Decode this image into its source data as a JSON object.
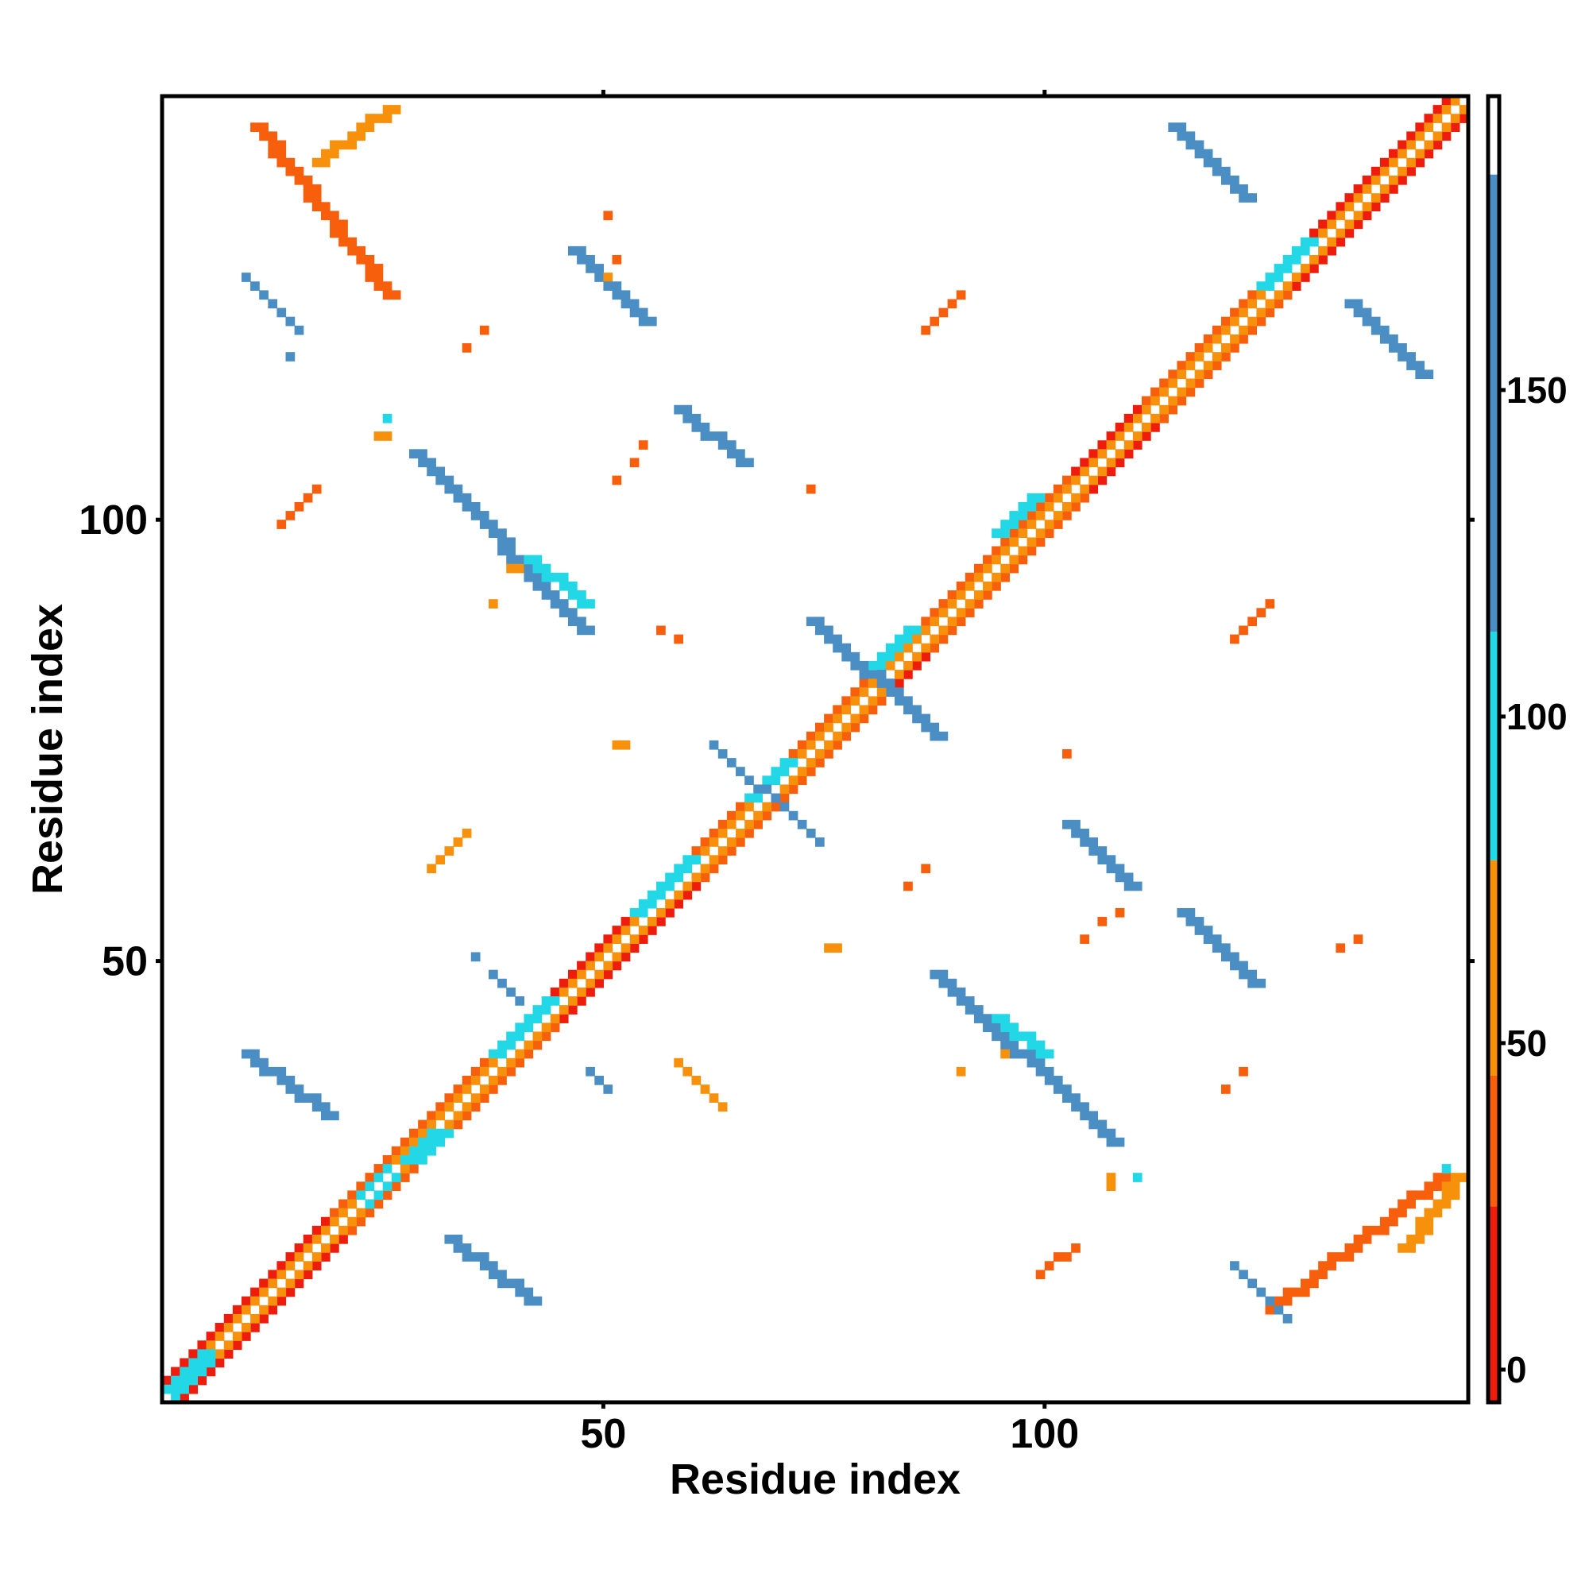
{
  "chart_data": {
    "type": "heatmap",
    "title": "",
    "xlabel": "Residue index",
    "ylabel": "Residue index",
    "xlim": [
      0,
      148
    ],
    "ylim": [
      0,
      148
    ],
    "x_ticks": [
      50,
      100
    ],
    "x_tick_labels": [
      "50",
      "100"
    ],
    "y_ticks": [
      50,
      100
    ],
    "y_tick_labels": [
      "50",
      "100"
    ],
    "grid": false,
    "legend": "right colorbar",
    "colorbar": {
      "ticks": [
        0,
        50,
        100,
        150
      ],
      "tick_labels": [
        "0",
        "50",
        "100",
        "150"
      ],
      "range": [
        -5,
        195
      ],
      "bands": [
        {
          "from": -5,
          "to": 25,
          "color": "#ee1c0c"
        },
        {
          "from": 25,
          "to": 45,
          "color": "#f75f0c"
        },
        {
          "from": 45,
          "to": 78,
          "color": "#f7910c"
        },
        {
          "from": 78,
          "to": 113,
          "color": "#22d8e6"
        },
        {
          "from": 113,
          "to": 183,
          "color": "#4a8ec4"
        },
        {
          "from": 183,
          "to": 195,
          "color": "#ffffff"
        }
      ]
    },
    "colors": {
      "red": "#ee1c0c",
      "orange_red": "#f75f0c",
      "orange": "#f7910c",
      "cyan": "#22d8e6",
      "steel_blue": "#4a8ec4",
      "frame": "#000000"
    },
    "segments": [
      {
        "x0": 1,
        "y0": 3,
        "x1": 147,
        "y1": 149,
        "w": 1,
        "color": "red",
        "sym": true
      },
      {
        "x0": 1,
        "y0": 2,
        "x1": 147,
        "y1": 148,
        "w": 1,
        "color": "orange",
        "sym": true
      },
      {
        "x0": 20,
        "y0": 22,
        "x1": 43,
        "y1": 45,
        "w": 1,
        "color": "orange_red",
        "sym": true
      },
      {
        "x0": 60,
        "y0": 62,
        "x1": 80,
        "y1": 82,
        "w": 1,
        "color": "orange_red",
        "sym": true
      },
      {
        "x0": 86,
        "y0": 88,
        "x1": 103,
        "y1": 105,
        "w": 1,
        "color": "orange_red",
        "sym": true
      },
      {
        "x0": 112,
        "y0": 114,
        "x1": 126,
        "y1": 128,
        "w": 1,
        "color": "orange_red",
        "sym": true
      },
      {
        "x0": 1,
        "y0": 2,
        "x1": 5,
        "y1": 6,
        "w": 2,
        "color": "cyan",
        "sym": true
      },
      {
        "x0": 23,
        "y0": 24,
        "x1": 26,
        "y1": 27,
        "w": 1,
        "color": "cyan",
        "sym": true
      },
      {
        "x0": 28,
        "y0": 28,
        "x1": 31,
        "y1": 31,
        "w": 3,
        "color": "cyan",
        "sym": false
      },
      {
        "x0": 38,
        "y0": 40,
        "x1": 44,
        "y1": 46,
        "w": 2,
        "color": "cyan",
        "sym": false
      },
      {
        "x0": 54,
        "y0": 56,
        "x1": 60,
        "y1": 62,
        "w": 2,
        "color": "cyan",
        "sym": false
      },
      {
        "x0": 67,
        "y0": 69,
        "x1": 71,
        "y1": 73,
        "w": 2,
        "color": "cyan",
        "sym": false
      },
      {
        "x0": 81,
        "y0": 84,
        "x1": 85,
        "y1": 88,
        "w": 2,
        "color": "cyan",
        "sym": false
      },
      {
        "x0": 95,
        "y0": 99,
        "x1": 99,
        "y1": 103,
        "w": 2,
        "color": "cyan",
        "sym": false
      },
      {
        "x0": 125,
        "y0": 127,
        "x1": 130,
        "y1": 132,
        "w": 2,
        "color": "cyan",
        "sym": false
      },
      {
        "x0": 11,
        "y0": 145,
        "x1": 26,
        "y1": 126,
        "w": 2,
        "color": "orange_red",
        "sym": false
      },
      {
        "x0": 18,
        "y0": 141,
        "x1": 26,
        "y1": 147,
        "w": 2,
        "color": "orange",
        "sym": false
      },
      {
        "x0": 126,
        "y0": 11,
        "x1": 145,
        "y1": 26,
        "w": 2,
        "color": "orange_red",
        "sym": false
      },
      {
        "x0": 141,
        "y0": 18,
        "x1": 147,
        "y1": 26,
        "w": 2,
        "color": "orange",
        "sym": false
      },
      {
        "x0": 10,
        "y0": 40,
        "x1": 19,
        "y1": 33,
        "w": 2,
        "color": "steel_blue",
        "sym": false
      },
      {
        "x0": 33,
        "y0": 19,
        "x1": 42,
        "y1": 12,
        "w": 2,
        "color": "steel_blue",
        "sym": false
      },
      {
        "x0": 29,
        "y0": 108,
        "x1": 48,
        "y1": 88,
        "w": 2,
        "color": "steel_blue",
        "sym": false
      },
      {
        "x0": 42,
        "y0": 96,
        "x1": 48,
        "y1": 91,
        "w": 2,
        "color": "cyan",
        "sym": false
      },
      {
        "x0": 88,
        "y0": 49,
        "x1": 108,
        "y1": 30,
        "w": 2,
        "color": "steel_blue",
        "sym": false
      },
      {
        "x0": 95,
        "y0": 44,
        "x1": 100,
        "y1": 40,
        "w": 2,
        "color": "cyan",
        "sym": false
      },
      {
        "x0": 47,
        "y0": 131,
        "x1": 55,
        "y1": 123,
        "w": 2,
        "color": "steel_blue",
        "sym": false
      },
      {
        "x0": 116,
        "y0": 56,
        "x1": 124,
        "y1": 48,
        "w": 2,
        "color": "steel_blue",
        "sym": false
      },
      {
        "x0": 59,
        "y0": 113,
        "x1": 66,
        "y1": 107,
        "w": 2,
        "color": "steel_blue",
        "sym": false
      },
      {
        "x0": 103,
        "y0": 66,
        "x1": 110,
        "y1": 59,
        "w": 2,
        "color": "steel_blue",
        "sym": false
      },
      {
        "x0": 115,
        "y0": 145,
        "x1": 123,
        "y1": 137,
        "w": 2,
        "color": "steel_blue",
        "sym": false
      },
      {
        "x0": 135,
        "y0": 125,
        "x1": 143,
        "y1": 117,
        "w": 2,
        "color": "steel_blue",
        "sym": false
      },
      {
        "x0": 74,
        "y0": 89,
        "x1": 88,
        "y1": 76,
        "w": 2,
        "color": "steel_blue",
        "sym": false
      },
      {
        "x0": 63,
        "y0": 75,
        "x1": 75,
        "y1": 64,
        "w": 1,
        "color": "steel_blue",
        "sym": false
      },
      {
        "x0": 10,
        "y0": 128,
        "x1": 16,
        "y1": 122,
        "w": 1,
        "color": "steel_blue",
        "sym": false
      },
      {
        "x0": 122,
        "y0": 16,
        "x1": 128,
        "y1": 10,
        "w": 1,
        "color": "steel_blue",
        "sym": false
      },
      {
        "x0": 14,
        "y0": 100,
        "x1": 18,
        "y1": 104,
        "w": 1,
        "color": "orange_red",
        "sym": false
      },
      {
        "x0": 31,
        "y0": 61,
        "x1": 35,
        "y1": 65,
        "w": 1,
        "color": "orange",
        "sym": false
      },
      {
        "x0": 59,
        "y0": 39,
        "x1": 64,
        "y1": 34,
        "w": 1,
        "color": "orange",
        "sym": false
      },
      {
        "x0": 100,
        "y0": 15,
        "x1": 104,
        "y1": 18,
        "w": 1,
        "color": "orange_red",
        "sym": false
      },
      {
        "x0": 87,
        "y0": 122,
        "x1": 91,
        "y1": 126,
        "w": 1,
        "color": "orange_red",
        "sym": false
      },
      {
        "x0": 122,
        "y0": 87,
        "x1": 126,
        "y1": 91,
        "w": 1,
        "color": "orange_red",
        "sym": false
      },
      {
        "x0": 38,
        "y0": 49,
        "x1": 41,
        "y1": 46,
        "w": 1,
        "color": "steel_blue",
        "sym": false
      },
      {
        "x0": 49,
        "y0": 38,
        "x1": 51,
        "y1": 36,
        "w": 1,
        "color": "steel_blue",
        "sym": false
      }
    ],
    "points": [
      {
        "x": 26,
        "y": 112,
        "color": "cyan"
      },
      {
        "x": 25,
        "y": 110,
        "color": "orange"
      },
      {
        "x": 26,
        "y": 110,
        "color": "orange"
      },
      {
        "x": 40,
        "y": 95,
        "color": "orange"
      },
      {
        "x": 41,
        "y": 95,
        "color": "orange"
      },
      {
        "x": 38,
        "y": 91,
        "color": "orange"
      },
      {
        "x": 57,
        "y": 88,
        "color": "orange_red"
      },
      {
        "x": 59,
        "y": 87,
        "color": "orange_red"
      },
      {
        "x": 52,
        "y": 75,
        "color": "orange"
      },
      {
        "x": 53,
        "y": 75,
        "color": "orange"
      },
      {
        "x": 52,
        "y": 130,
        "color": "orange_red"
      },
      {
        "x": 51,
        "y": 128,
        "color": "orange"
      },
      {
        "x": 55,
        "y": 109,
        "color": "orange_red"
      },
      {
        "x": 54,
        "y": 107,
        "color": "orange_red"
      },
      {
        "x": 52,
        "y": 105,
        "color": "orange_red"
      },
      {
        "x": 37,
        "y": 122,
        "color": "orange_red"
      },
      {
        "x": 35,
        "y": 120,
        "color": "orange_red"
      },
      {
        "x": 74,
        "y": 104,
        "color": "orange_red"
      },
      {
        "x": 76,
        "y": 52,
        "color": "orange"
      },
      {
        "x": 77,
        "y": 52,
        "color": "orange"
      },
      {
        "x": 85,
        "y": 59,
        "color": "orange_red"
      },
      {
        "x": 87,
        "y": 61,
        "color": "orange_red"
      },
      {
        "x": 91,
        "y": 38,
        "color": "orange"
      },
      {
        "x": 96,
        "y": 40,
        "color": "orange"
      },
      {
        "x": 108,
        "y": 25,
        "color": "orange"
      },
      {
        "x": 108,
        "y": 26,
        "color": "orange"
      },
      {
        "x": 111,
        "y": 26,
        "color": "cyan"
      },
      {
        "x": 103,
        "y": 74,
        "color": "orange_red"
      },
      {
        "x": 105,
        "y": 53,
        "color": "orange_red"
      },
      {
        "x": 107,
        "y": 55,
        "color": "orange_red"
      },
      {
        "x": 109,
        "y": 56,
        "color": "orange_red"
      },
      {
        "x": 121,
        "y": 36,
        "color": "orange_red"
      },
      {
        "x": 123,
        "y": 38,
        "color": "orange_red"
      },
      {
        "x": 134,
        "y": 52,
        "color": "orange_red"
      },
      {
        "x": 136,
        "y": 53,
        "color": "orange_red"
      },
      {
        "x": 146,
        "y": 27,
        "color": "cyan"
      },
      {
        "x": 36,
        "y": 51,
        "color": "steel_blue"
      },
      {
        "x": 38,
        "y": 49,
        "color": "steel_blue"
      },
      {
        "x": 51,
        "y": 135,
        "color": "orange_red"
      },
      {
        "x": 15,
        "y": 119,
        "color": "steel_blue"
      }
    ]
  }
}
